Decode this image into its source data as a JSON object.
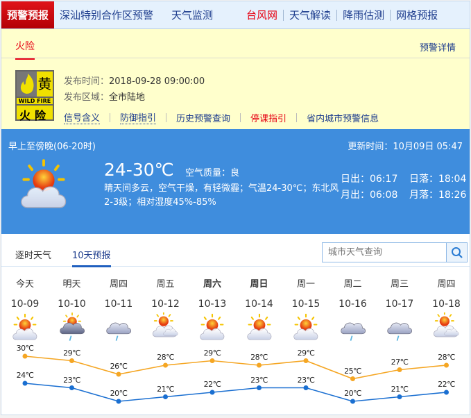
{
  "topnav": {
    "items": [
      {
        "label": "预警预报",
        "active": true
      },
      {
        "label": "深汕特别合作区预警"
      },
      {
        "label": "天气监测"
      },
      {
        "label": "台风网",
        "color": "#e60012"
      },
      {
        "label": "天气解读"
      },
      {
        "label": "降雨估测"
      },
      {
        "label": "网格预报"
      }
    ]
  },
  "warning": {
    "tab": "火险",
    "detail_link": "预警详情",
    "badge": {
      "level": "黄",
      "en": "WILD FIRE",
      "cn": "火险",
      "color": "#f0e000"
    },
    "time_label": "发布时间：",
    "time": "2018-09-28 09:00:00",
    "area_label": "发布区域：",
    "area": "全市陆地",
    "links": [
      {
        "label": "信号含义"
      },
      {
        "label": "防御指引"
      },
      {
        "label": "历史预警查询"
      },
      {
        "label": "停课指引",
        "color": "#e60012"
      },
      {
        "label": "省内城市预警信息"
      }
    ]
  },
  "today": {
    "period": "早上至傍晚(06-20时)",
    "update": "更新时间：10月09日 05:47",
    "temp": "24-30℃",
    "aqi_label": "空气质量：",
    "aqi": "良",
    "desc": "晴天间多云，空气干燥，有轻微霾；气温24-30℃；东北风2-3级；相对湿度45%-85%",
    "sunrise": "日出：06:17",
    "sunset": "日落：18:04",
    "moonrise": "月出：06:08",
    "moonset": "月落：18:26",
    "icon": "partly-cloudy"
  },
  "tabs": [
    {
      "label": "逐时天气"
    },
    {
      "label": "10天预报",
      "active": true
    }
  ],
  "search": {
    "placeholder": "城市天气查询"
  },
  "forecast": {
    "days": [
      {
        "week": "今天",
        "date": "10-09",
        "icon": "partly-cloudy",
        "high": "30℃",
        "low": "24℃"
      },
      {
        "week": "明天",
        "date": "10-10",
        "icon": "shower",
        "high": "29℃",
        "low": "23℃"
      },
      {
        "week": "周四",
        "date": "10-11",
        "icon": "light-rain",
        "high": "26℃",
        "low": "20℃"
      },
      {
        "week": "周五",
        "date": "10-12",
        "icon": "cloudy",
        "high": "28℃",
        "low": "21℃"
      },
      {
        "week": "周六",
        "date": "10-13",
        "icon": "partly-cloudy",
        "high": "29℃",
        "low": "22℃",
        "bold": true
      },
      {
        "week": "周日",
        "date": "10-14",
        "icon": "partly-cloudy",
        "high": "28℃",
        "low": "23℃",
        "bold": true
      },
      {
        "week": "周一",
        "date": "10-15",
        "icon": "partly-cloudy",
        "high": "29℃",
        "low": "23℃"
      },
      {
        "week": "周二",
        "date": "10-16",
        "icon": "light-rain",
        "high": "25℃",
        "low": "20℃"
      },
      {
        "week": "周三",
        "date": "10-17",
        "icon": "light-rain",
        "high": "27℃",
        "low": "21℃"
      },
      {
        "week": "周四",
        "date": "10-18",
        "icon": "cloudy",
        "high": "28℃",
        "low": "22℃"
      }
    ],
    "high_values": [
      30,
      29,
      26,
      28,
      29,
      28,
      29,
      25,
      27,
      28
    ],
    "low_values": [
      24,
      23,
      20,
      21,
      22,
      23,
      23,
      20,
      21,
      22
    ],
    "high_color": "#f5a623",
    "low_color": "#1a6fd1"
  }
}
